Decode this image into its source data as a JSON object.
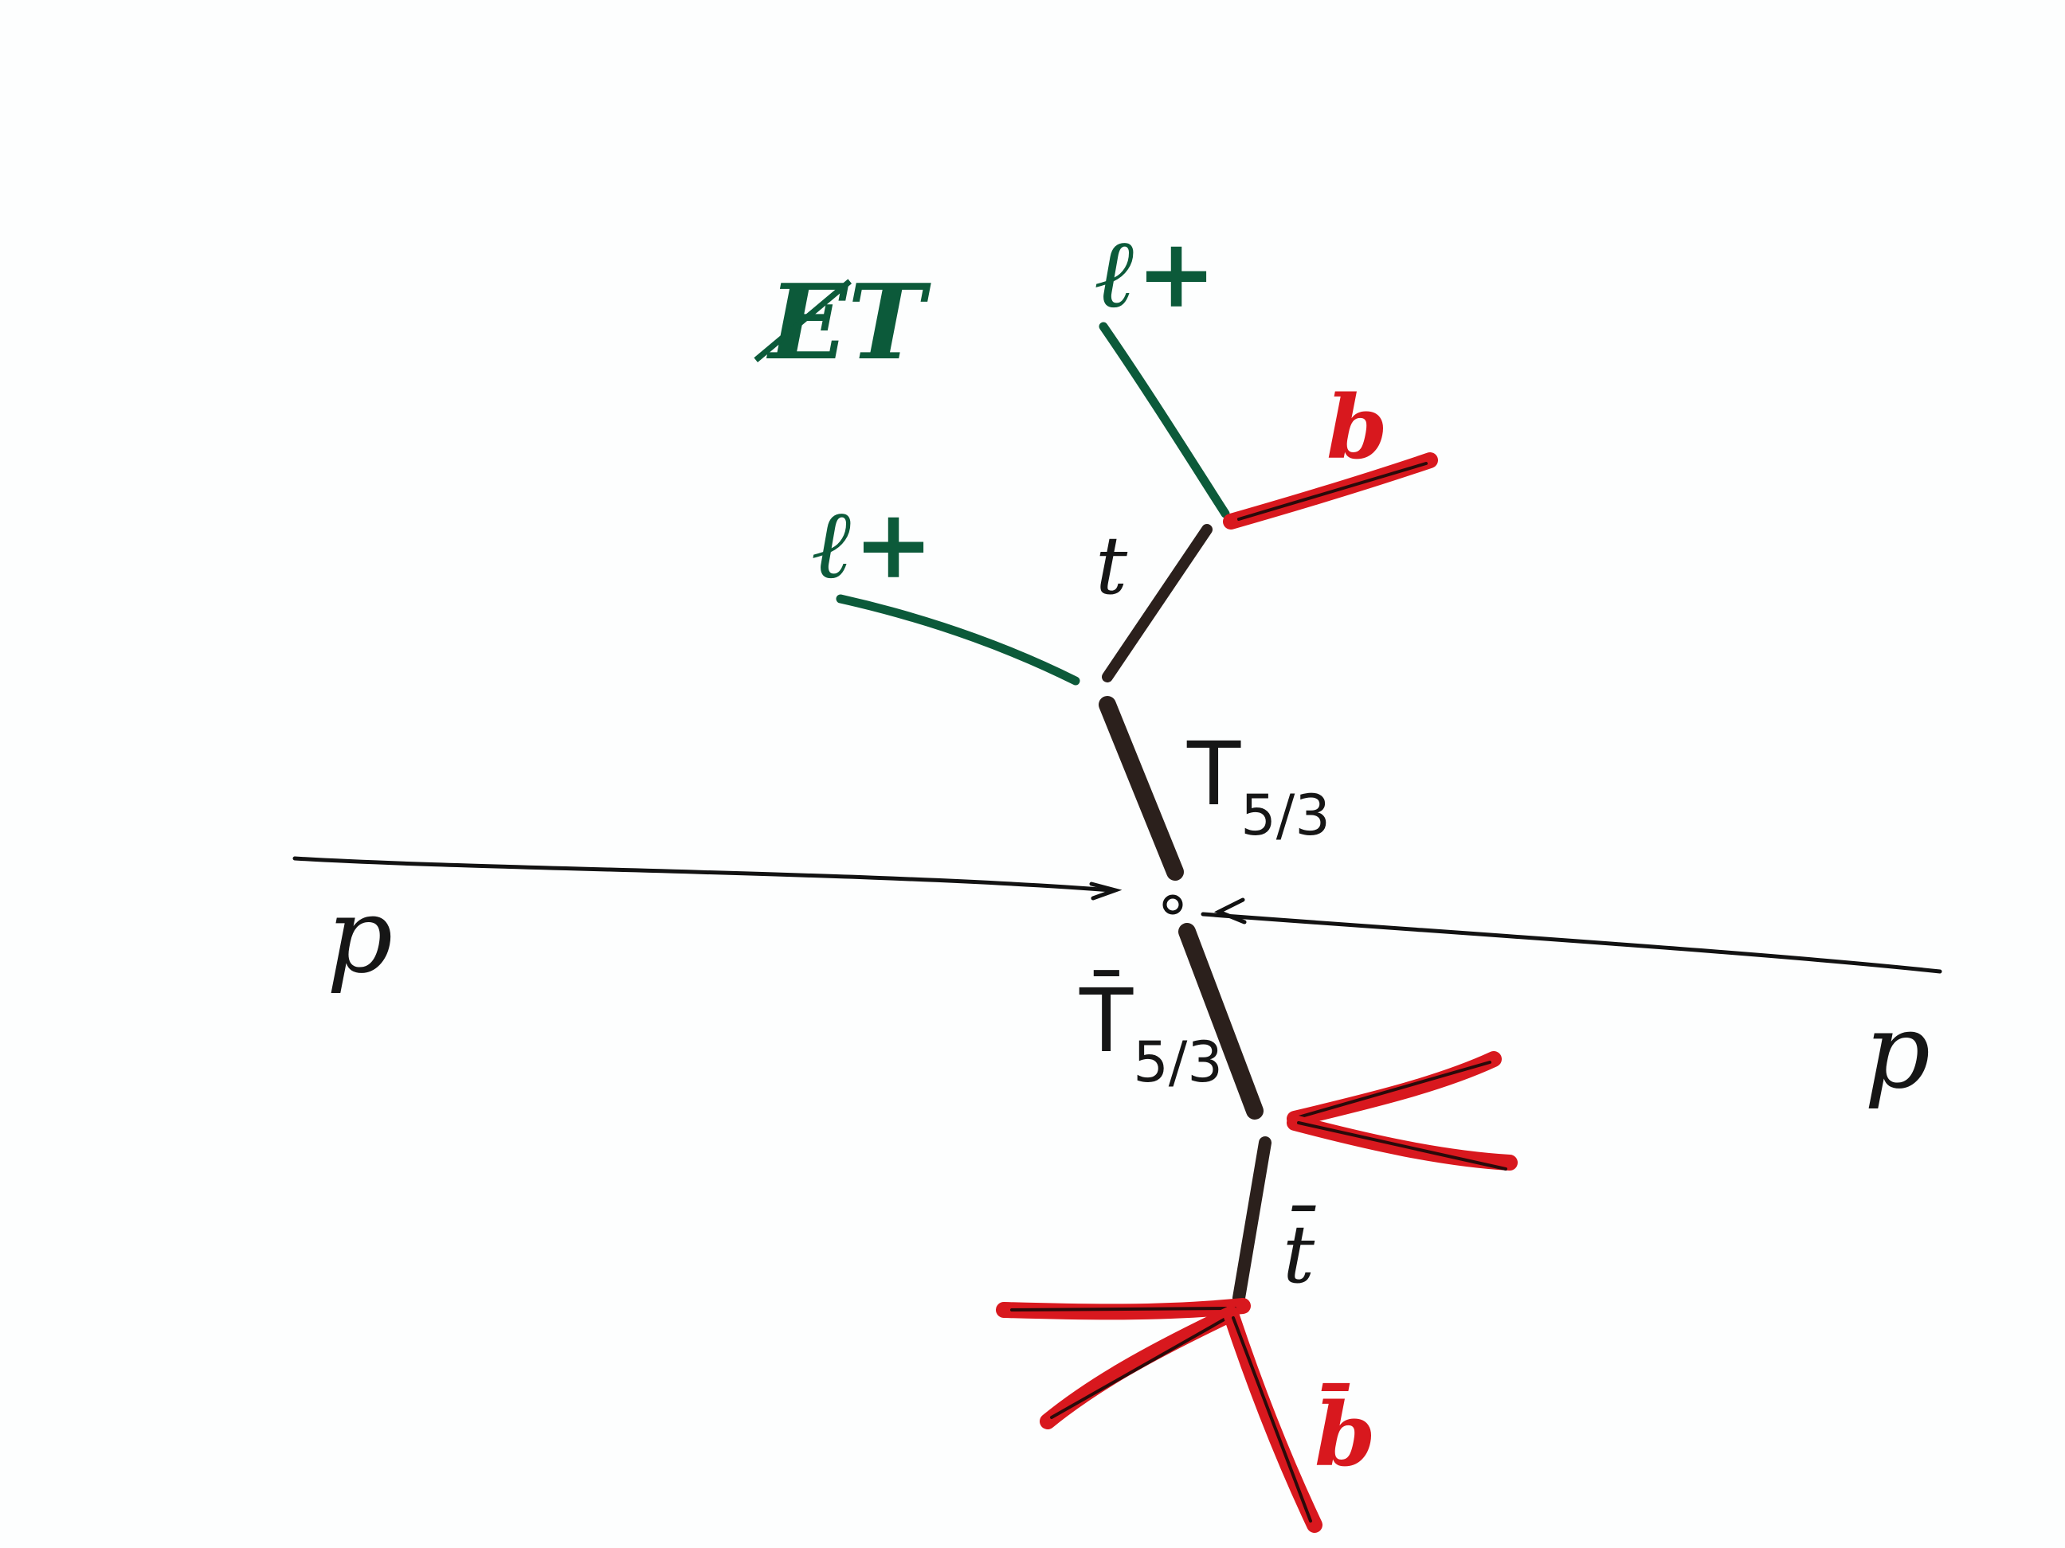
{
  "diagram": {
    "type": "feynman-style event sketch",
    "colors": {
      "background": "#fdfefe",
      "ink": "#161616",
      "beam": "#121212",
      "lepton": "#0c5a3a",
      "jet": "#d8181e",
      "jet_core": "#2a0a0a"
    },
    "labels": {
      "met": "E̸T",
      "lepton_top": "ℓ+",
      "lepton_left": "ℓ+",
      "b_quark": "b",
      "top": "t",
      "T53_main": "T",
      "T53_sub": "5/3",
      "T53bar_main": "T̄",
      "T53bar_sub": "5/3",
      "antitop": "t̄",
      "bbar_main": "b̄",
      "proton_left": "p",
      "proton_right": "p"
    }
  }
}
